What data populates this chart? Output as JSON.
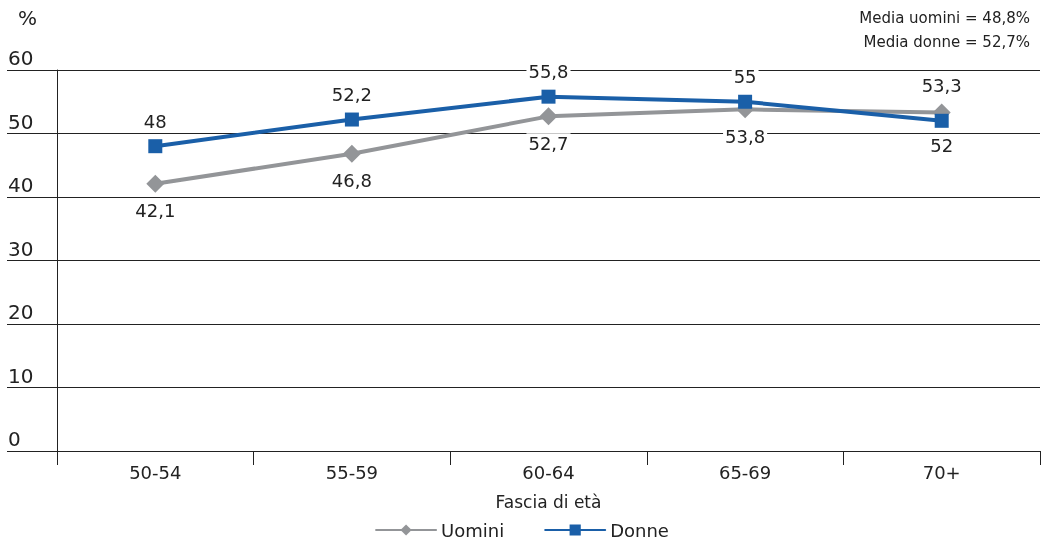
{
  "chart_data": {
    "type": "line",
    "ylabel": "%",
    "xlabel": "Fascia di età",
    "categories": [
      "50-54",
      "55-59",
      "60-64",
      "65-69",
      "70+"
    ],
    "series": [
      {
        "name": "Uomini",
        "color": "#939598",
        "marker": "diamond",
        "values": [
          42.1,
          46.8,
          52.7,
          53.8,
          53.3
        ],
        "value_labels": [
          "42,1",
          "46,8",
          "52,7",
          "53,8",
          "53,3"
        ]
      },
      {
        "name": "Donne",
        "color": "#1a5fa8",
        "marker": "square",
        "values": [
          48,
          52.2,
          55.8,
          55,
          52
        ],
        "value_labels": [
          "48",
          "52,2",
          "55,8",
          "55",
          "52"
        ]
      }
    ],
    "ylim": [
      0,
      60
    ],
    "yticks": [
      0,
      10,
      20,
      30,
      40,
      50,
      60
    ],
    "grid": "y",
    "legend": "bottom",
    "line_style": "solid",
    "annotations": [
      "Media uomini = 48,8%",
      "Media donne = 52,7%"
    ]
  }
}
